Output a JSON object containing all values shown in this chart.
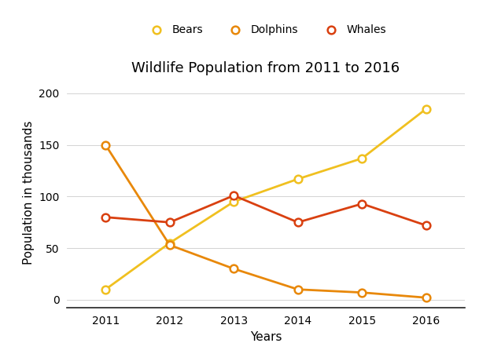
{
  "title": "Wildlife Population from 2011 to 2016",
  "xlabel": "Years",
  "ylabel": "Population in thousands",
  "years": [
    2011,
    2012,
    2013,
    2014,
    2015,
    2016
  ],
  "series": {
    "Bears": {
      "values": [
        10,
        55,
        95,
        117,
        137,
        185
      ],
      "color": "#F0C020",
      "linewidth": 2.0
    },
    "Dolphins": {
      "values": [
        150,
        53,
        30,
        10,
        7,
        2
      ],
      "color": "#E8880A",
      "linewidth": 2.0
    },
    "Whales": {
      "values": [
        80,
        75,
        101,
        75,
        93,
        72
      ],
      "color": "#D94010",
      "linewidth": 2.0
    }
  },
  "ylim": [
    -8,
    215
  ],
  "yticks": [
    0,
    50,
    100,
    150,
    200
  ],
  "xticks": [
    2011,
    2012,
    2013,
    2014,
    2015,
    2016
  ],
  "background_color": "#ffffff",
  "title_fontsize": 13,
  "axis_label_fontsize": 11,
  "tick_fontsize": 10,
  "legend_fontsize": 10
}
